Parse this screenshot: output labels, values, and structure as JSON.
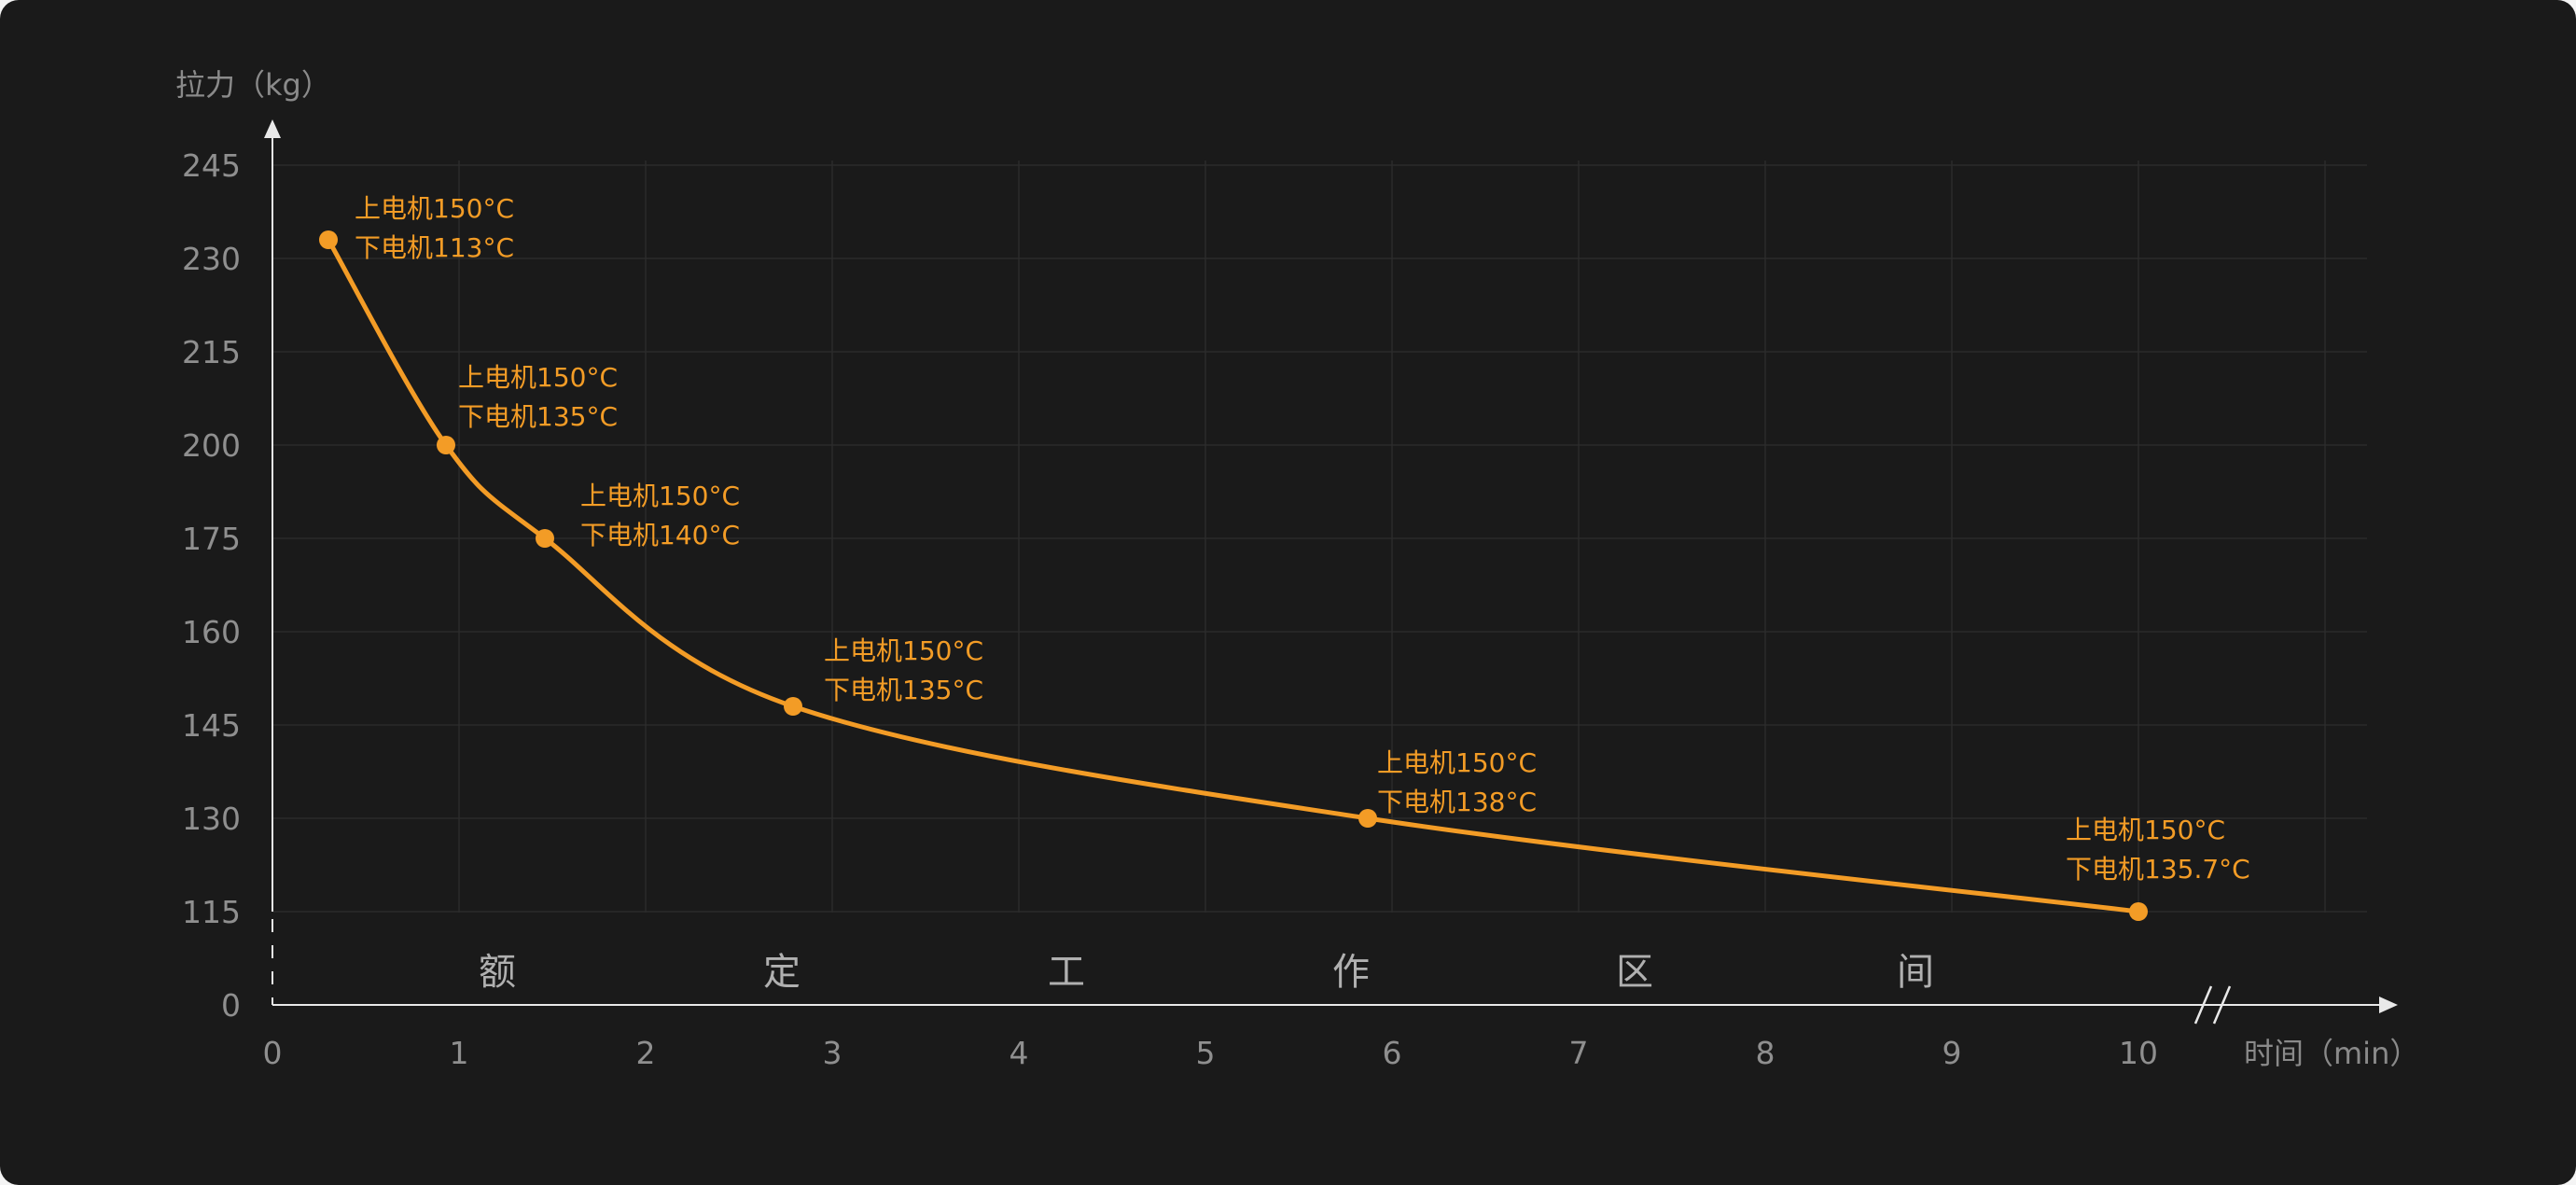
{
  "chart_data": {
    "type": "line",
    "ylabel": "拉力（kg）",
    "xlabel": "时间（min）",
    "x_ticks": [
      "0",
      "1",
      "2",
      "3",
      "4",
      "5",
      "6",
      "7",
      "8",
      "9",
      "10"
    ],
    "y_ticks": [
      "0",
      "115",
      "130",
      "145",
      "160",
      "175",
      "200",
      "215",
      "230",
      "245"
    ],
    "y_axis_break": true,
    "x_axis_break": true,
    "grid": true,
    "band_label": [
      "额",
      "定",
      "工",
      "作",
      "区",
      "间"
    ],
    "series": [
      {
        "color": "#f39c26",
        "points": [
          {
            "x": 0.3,
            "y": 233,
            "upper": "上电机150°C",
            "lower": "下电机113°C"
          },
          {
            "x": 0.93,
            "y": 200,
            "upper": "上电机150°C",
            "lower": "下电机135°C"
          },
          {
            "x": 1.46,
            "y": 175,
            "upper": "上电机150°C",
            "lower": "下电机140°C"
          },
          {
            "x": 2.79,
            "y": 148,
            "upper": "上电机150°C",
            "lower": "下电机135°C"
          },
          {
            "x": 5.87,
            "y": 130,
            "upper": "上电机150°C",
            "lower": "下电机138°C"
          },
          {
            "x": 10.0,
            "y": 115,
            "upper": "上电机150°C",
            "lower": "下电机135.7°C"
          }
        ]
      }
    ]
  }
}
